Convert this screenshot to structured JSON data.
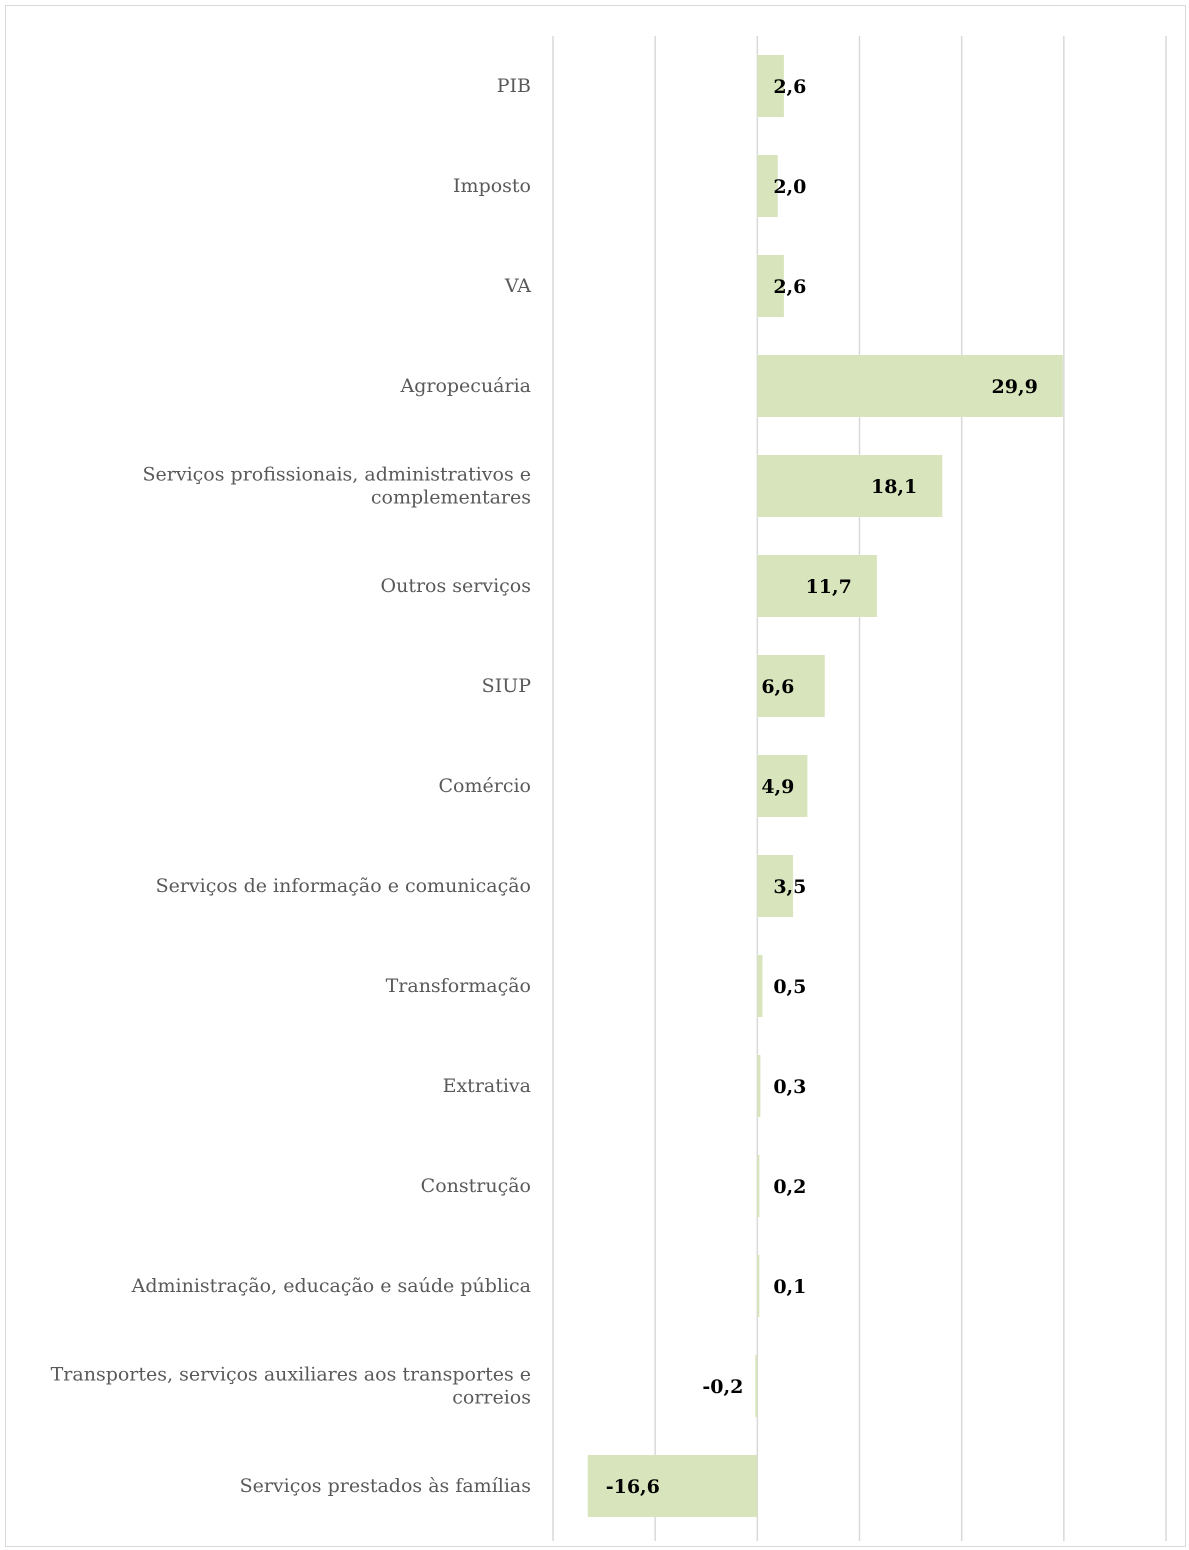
{
  "chart_data": {
    "type": "bar",
    "orientation": "horizontal",
    "categories": [
      "PIB",
      "Imposto",
      "VA",
      "Agropecuária",
      "Serviços profissionais, administrativos e complementares",
      "Outros serviços",
      "SIUP",
      "Comércio",
      "Serviços de informação e comunicação",
      "Transformação",
      "Extrativa",
      "Construção",
      "Administração, educação e saúde pública",
      "Transportes, serviços auxiliares aos transportes e correios",
      "Serviços prestados às famílias"
    ],
    "category_lines": [
      [
        "PIB"
      ],
      [
        "Imposto"
      ],
      [
        "VA"
      ],
      [
        "Agropecuária"
      ],
      [
        "Serviços profissionais, administrativos e",
        "complementares"
      ],
      [
        "Outros serviços"
      ],
      [
        "SIUP"
      ],
      [
        "Comércio"
      ],
      [
        "Serviços de informação e comunicação"
      ],
      [
        "Transformação"
      ],
      [
        "Extrativa"
      ],
      [
        "Construção"
      ],
      [
        "Administração, educação e saúde pública"
      ],
      [
        "Transportes, serviços auxiliares aos transportes e",
        "correios"
      ],
      [
        "Serviços prestados às famílias"
      ]
    ],
    "values": [
      2.6,
      2.0,
      2.6,
      29.9,
      18.1,
      11.7,
      6.6,
      4.9,
      3.5,
      0.5,
      0.3,
      0.2,
      0.1,
      -0.2,
      -16.6
    ],
    "value_labels": [
      "2,6",
      "2,0",
      "2,6",
      "29,9",
      "18,1",
      "11,7",
      "6,6",
      "4,9",
      "3,5",
      "0,5",
      "0,3",
      "0,2",
      "0,1",
      "-0,2",
      "-16,6"
    ],
    "xlim": [
      -20,
      40
    ],
    "gridlines": [
      -20,
      -10,
      0,
      10,
      20,
      30,
      40
    ],
    "grid": true,
    "axis_tick_labels": false,
    "legend": false,
    "title": "",
    "xlabel": "",
    "ylabel": "",
    "bar_color": "#d8e4bc",
    "grid_color": "#d9d9d9",
    "category_label_color": "#595959",
    "value_label_color": "#000000"
  }
}
